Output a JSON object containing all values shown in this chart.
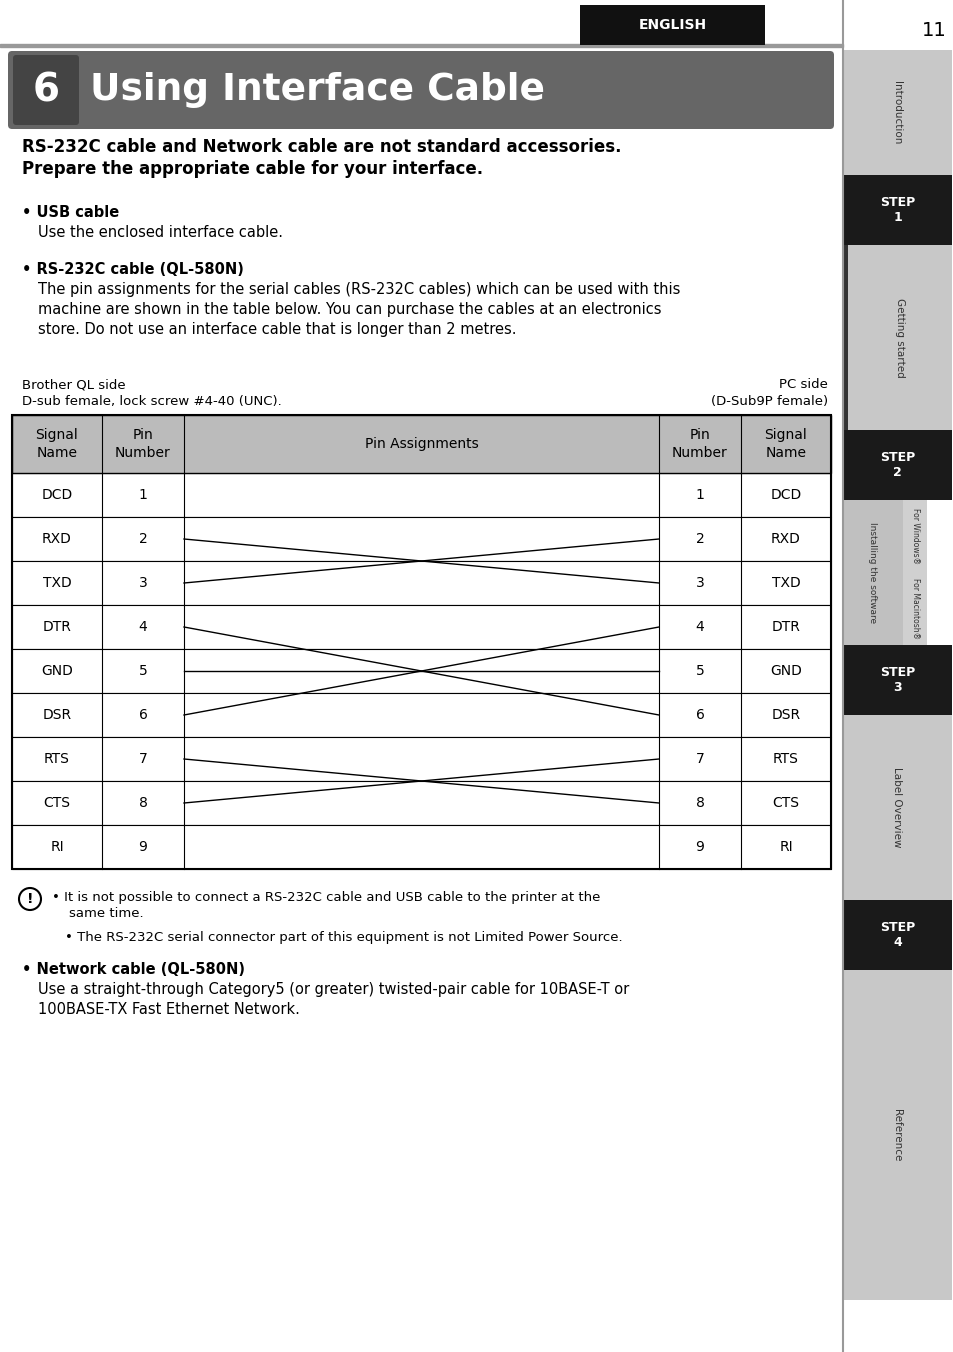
{
  "page_num": "11",
  "english_label": "ENGLISH",
  "chapter_num": "6",
  "chapter_title": "Using Interface Cable",
  "intro_line1": "RS-232C cable and Network cable are not standard accessories.",
  "intro_line2": "Prepare the appropriate cable for your interface.",
  "usb_bullet": "• USB cable",
  "usb_desc": "Use the enclosed interface cable.",
  "rs232_bullet": "• RS-232C cable (QL-580N)",
  "rs232_desc": "The pin assignments for the serial cables (RS-232C cables) which can be used with this\nmachine are shown in the table below. You can purchase the cables at an electronics\nstore. Do not use an interface cable that is longer than 2 metres.",
  "brother_side_line1": "Brother QL side",
  "brother_side_line2": "D-sub female, lock screw #4-40 (UNC).",
  "pc_side_line1": "PC side",
  "pc_side_line2": "(D-Sub9P female)",
  "table_headers": [
    "Signal\nName",
    "Pin\nNumber",
    "Pin Assignments",
    "Pin\nNumber",
    "Signal\nName"
  ],
  "table_rows": [
    [
      "DCD",
      "1",
      "1",
      "DCD"
    ],
    [
      "RXD",
      "2",
      "2",
      "RXD"
    ],
    [
      "TXD",
      "3",
      "3",
      "TXD"
    ],
    [
      "DTR",
      "4",
      "4",
      "DTR"
    ],
    [
      "GND",
      "5",
      "5",
      "GND"
    ],
    [
      "DSR",
      "6",
      "6",
      "DSR"
    ],
    [
      "RTS",
      "7",
      "7",
      "RTS"
    ],
    [
      "CTS",
      "8",
      "8",
      "CTS"
    ],
    [
      "RI",
      "9",
      "9",
      "RI"
    ]
  ],
  "note_lines": [
    "It is not possible to connect a RS-232C cable and USB cable to the printer at the\n    same time.",
    "The RS-232C serial connector part of this equipment is not Limited Power Source."
  ],
  "network_bullet": "• Network cable (QL-580N)",
  "network_desc": "Use a straight-through Category5 (or greater) twisted-pair cable for 10BASE-T or\n100BASE-TX Fast Ethernet Network.",
  "bg_color": "#ffffff",
  "sidebar_bg": "#cccccc",
  "step_bg": "#1a1a1a",
  "header_bar_color": "#888888",
  "eng_box_color": "#1a1a1a",
  "chapter_bg": "#666666",
  "chapter_num_bg": "#444444",
  "table_header_bg": "#bbbbbb"
}
